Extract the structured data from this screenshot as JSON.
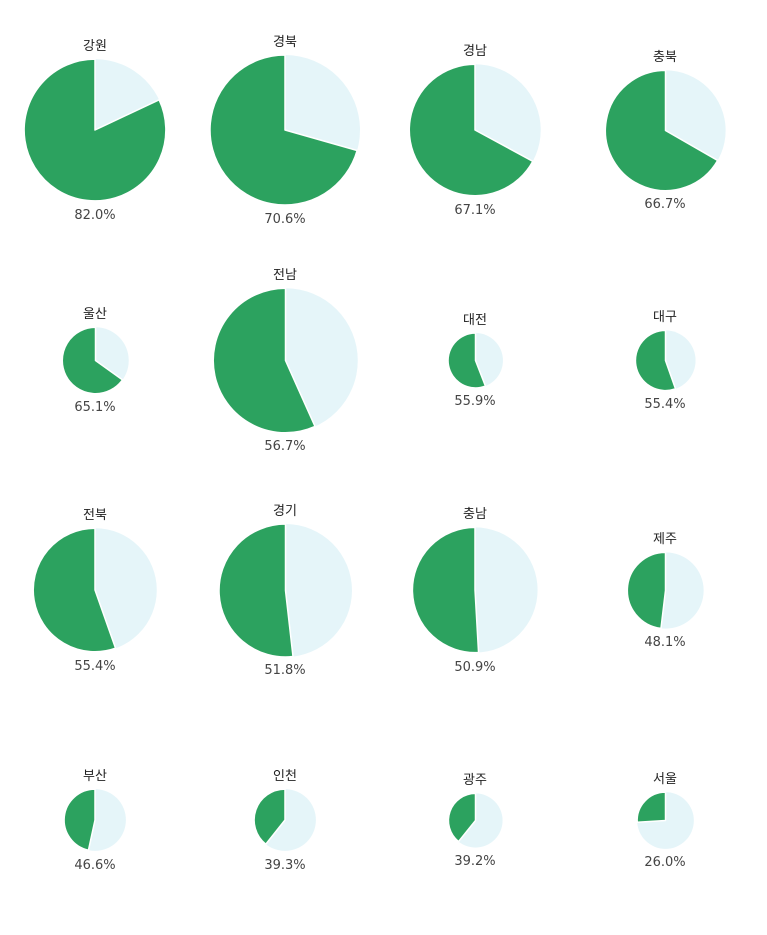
{
  "chart_data": {
    "type": "pie",
    "colors": {
      "value": "#2ca25f",
      "remainder": "#e5f5f9",
      "stroke": "#ffffff"
    },
    "regions": [
      {
        "name": "강원",
        "value": 82.0,
        "label": "82.0%",
        "total": 50
      },
      {
        "name": "경북",
        "value": 70.6,
        "label": "70.6%",
        "total": 56
      },
      {
        "name": "경남",
        "value": 67.1,
        "label": "67.1%",
        "total": 43
      },
      {
        "name": "충북",
        "value": 66.7,
        "label": "66.7%",
        "total": 36
      },
      {
        "name": "울산",
        "value": 65.1,
        "label": "65.1%",
        "total": 11
      },
      {
        "name": "전남",
        "value": 56.7,
        "label": "56.7%",
        "total": 52
      },
      {
        "name": "대전",
        "value": 55.9,
        "label": "55.9%",
        "total": 7.5
      },
      {
        "name": "대구",
        "value": 55.4,
        "label": "55.4%",
        "total": 9
      },
      {
        "name": "전북",
        "value": 55.4,
        "label": "55.4%",
        "total": 38
      },
      {
        "name": "경기",
        "value": 51.8,
        "label": "51.8%",
        "total": 44
      },
      {
        "name": "충남",
        "value": 50.9,
        "label": "50.9%",
        "total": 39
      },
      {
        "name": "제주",
        "value": 48.1,
        "label": "48.1%",
        "total": 14.5
      },
      {
        "name": "부산",
        "value": 46.6,
        "label": "46.6%",
        "total": 9.5
      },
      {
        "name": "인천",
        "value": 39.3,
        "label": "39.3%",
        "total": 9.5
      },
      {
        "name": "광주",
        "value": 39.2,
        "label": "39.2%",
        "total": 7.3
      },
      {
        "name": "서울",
        "value": 26.0,
        "label": "26.0%",
        "total": 8
      }
    ]
  }
}
